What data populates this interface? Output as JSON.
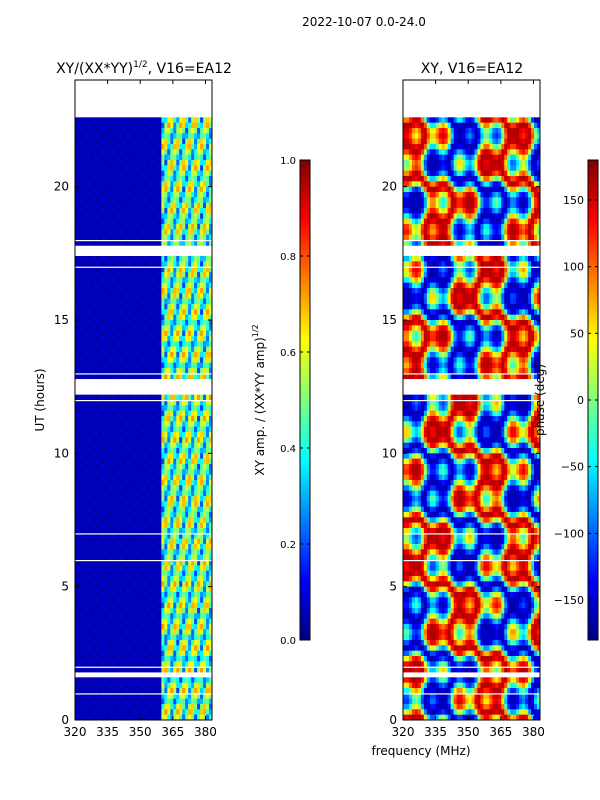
{
  "figure_title": "2022-10-07 0.0-24.0",
  "colors": {
    "jet": [
      "#00007f",
      "#0000ff",
      "#007fff",
      "#00ffff",
      "#7fff7f",
      "#ffff00",
      "#ff7f00",
      "#ff0000",
      "#7f0000"
    ],
    "background": "#ffffff",
    "axis": "#000000"
  },
  "chart_data": [
    {
      "type": "heatmap",
      "title_main": "XY/(XX*YY)",
      "title_exp": "1/2",
      "title_rest": ", V16=EA12",
      "xlabel": "",
      "ylabel": "UT (hours)",
      "xlim": [
        320,
        383
      ],
      "ylim": [
        0,
        24
      ],
      "xticks": [
        320,
        335,
        350,
        365,
        380
      ],
      "xtick_labels": [
        "320",
        "335",
        "350",
        "365",
        "380"
      ],
      "yticks": [
        0,
        5,
        10,
        15,
        20
      ],
      "ytick_labels": [
        "0",
        "5",
        "10",
        "15",
        "20"
      ],
      "colorbar": {
        "label_main": "XY amp. / (XX*YY amp)",
        "label_exp": "1/2",
        "range": [
          0.0,
          1.0
        ],
        "ticks": [
          0.0,
          0.2,
          0.4,
          0.6,
          0.8,
          1.0
        ],
        "tick_labels": [
          "0.0",
          "0.2",
          "0.4",
          "0.6",
          "0.8",
          "1.0"
        ]
      },
      "value_summary": "Near 0 (dark blue) from 320-360 MHz; 0.2-0.8 banded structure from ~360-380 MHz",
      "no_data_hours": [
        [
          22.6,
          24.0
        ],
        [
          17.35,
          17.85
        ],
        [
          12.2,
          12.7
        ],
        [
          1.55,
          1.85
        ]
      ]
    },
    {
      "type": "heatmap",
      "title_main": "XY, V16=EA12",
      "xlabel": "frequency (MHz)",
      "ylabel": "",
      "xlim": [
        320,
        383
      ],
      "ylim": [
        0,
        24
      ],
      "xticks": [
        320,
        335,
        350,
        365,
        380
      ],
      "xtick_labels": [
        "320",
        "335",
        "350",
        "365",
        "380"
      ],
      "yticks": [
        0,
        5,
        10,
        15,
        20
      ],
      "ytick_labels": [
        "0",
        "5",
        "10",
        "15",
        "20"
      ],
      "colorbar": {
        "label": "phase (deg)",
        "range": [
          -180,
          180
        ],
        "ticks": [
          -150,
          -100,
          -50,
          0,
          50,
          100,
          150
        ],
        "tick_labels": [
          "−150",
          "−100",
          "−50",
          "0",
          "50",
          "100",
          "150"
        ]
      },
      "value_summary": "Phase spans full -180 to 180 deg range with frequency-dependent stripes",
      "no_data_hours": [
        [
          22.6,
          24.0
        ],
        [
          17.35,
          17.85
        ],
        [
          12.2,
          12.7
        ],
        [
          1.55,
          1.85
        ]
      ]
    }
  ]
}
